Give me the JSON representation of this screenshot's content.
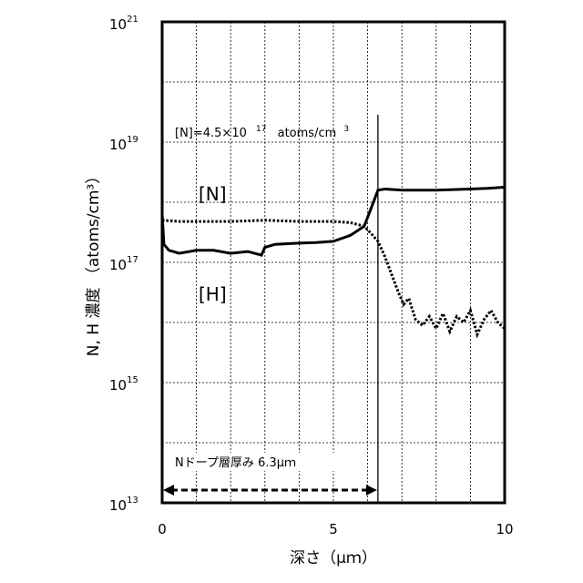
{
  "chart_data": {
    "type": "line",
    "xlabel": "深さ（μｍ）",
    "ylabel": "N, H 濃度 （atoms/cm³）",
    "xlim": [
      0,
      10
    ],
    "ylim_log10": [
      13,
      21
    ],
    "yscale": "log",
    "grid": true,
    "x_ticks": [
      {
        "value": 0,
        "label": "0"
      },
      {
        "value": 5,
        "label": "5"
      },
      {
        "value": 10,
        "label": "10"
      }
    ],
    "y_ticks": [
      {
        "exp": 13,
        "base": "10",
        "sup": "13"
      },
      {
        "exp": 15,
        "base": "10",
        "sup": "15"
      },
      {
        "exp": 17,
        "base": "10",
        "sup": "17"
      },
      {
        "exp": 19,
        "base": "10",
        "sup": "19"
      },
      {
        "exp": 21,
        "base": "10",
        "sup": "21"
      }
    ],
    "series": [
      {
        "name": "[N]",
        "style": "solid",
        "x": [
          0.0,
          0.05,
          0.2,
          0.5,
          1.0,
          1.5,
          2.0,
          2.5,
          2.9,
          3.0,
          3.3,
          4.0,
          4.5,
          5.0,
          5.5,
          5.9,
          6.1,
          6.3,
          6.5,
          7.0,
          8.0,
          9.0,
          9.5,
          10.0
        ],
        "log10": [
          17.8,
          17.3,
          17.2,
          17.15,
          17.2,
          17.2,
          17.15,
          17.18,
          17.12,
          17.25,
          17.3,
          17.32,
          17.33,
          17.35,
          17.45,
          17.6,
          17.9,
          18.2,
          18.22,
          18.2,
          18.2,
          18.22,
          18.23,
          18.25
        ]
      },
      {
        "name": "[H]",
        "style": "dotted",
        "x": [
          0.0,
          0.5,
          1.0,
          2.0,
          3.0,
          4.0,
          5.0,
          5.5,
          5.9,
          6.1,
          6.3,
          6.5,
          6.7,
          6.9,
          7.05,
          7.2,
          7.4,
          7.6,
          7.8,
          8.0,
          8.2,
          8.4,
          8.6,
          8.8,
          9.0,
          9.2,
          9.4,
          9.6,
          9.8,
          10.0
        ],
        "log10": [
          17.7,
          17.68,
          17.68,
          17.68,
          17.7,
          17.68,
          17.68,
          17.66,
          17.6,
          17.48,
          17.35,
          17.1,
          16.8,
          16.5,
          16.3,
          16.4,
          16.05,
          15.95,
          16.1,
          15.9,
          16.15,
          15.85,
          16.1,
          16.0,
          16.2,
          15.8,
          16.05,
          16.2,
          16.0,
          15.9
        ]
      }
    ],
    "annotations": {
      "n_level": "[N]=4.5×10",
      "n_level_exp": "17",
      "n_level_unit": "atoms/cm",
      "n_level_unit_exp": "3",
      "n_label": "[N]",
      "h_label": "[H]",
      "layer_thickness": "Nドープ層厚み 6.3μｍ",
      "layer_thickness_value": 6.3
    }
  }
}
